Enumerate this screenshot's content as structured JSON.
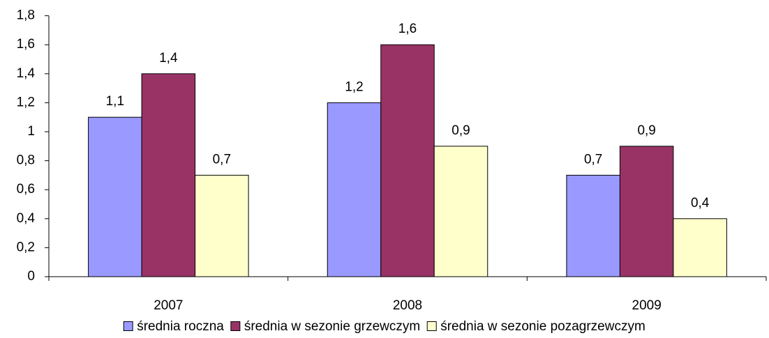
{
  "chart_data": {
    "type": "bar",
    "categories": [
      "2007",
      "2008",
      "2009"
    ],
    "series": [
      {
        "name": "średnia roczna",
        "color": "#9999ff",
        "values": [
          1.1,
          1.2,
          0.7
        ],
        "value_labels": [
          "1,1",
          "1,2",
          "0,7"
        ]
      },
      {
        "name": "średnia w sezonie grzewczym",
        "color": "#993366",
        "values": [
          1.4,
          1.6,
          0.9
        ],
        "value_labels": [
          "1,4",
          "1,6",
          "0,9"
        ]
      },
      {
        "name": "średnia w sezonie pozagrzewczym",
        "color": "#ffffcc",
        "values": [
          0.7,
          0.9,
          0.4
        ],
        "value_labels": [
          "0,7",
          "0,9",
          "0,4"
        ]
      }
    ],
    "ylim": [
      0,
      1.8
    ],
    "yticks": [
      0,
      {
        "value": 0.2,
        "label": "0,2"
      },
      {
        "value": 0.4,
        "label": "0,4"
      },
      {
        "value": 0.6,
        "label": "0,6"
      },
      {
        "value": 0.8,
        "label": "0,8"
      },
      1,
      {
        "value": 1.2,
        "label": "1,2"
      },
      {
        "value": 1.4,
        "label": "1,4"
      },
      {
        "value": 1.6,
        "label": "1,6"
      },
      {
        "value": 1.8,
        "label": "1,8"
      }
    ],
    "legend": "bottom"
  }
}
